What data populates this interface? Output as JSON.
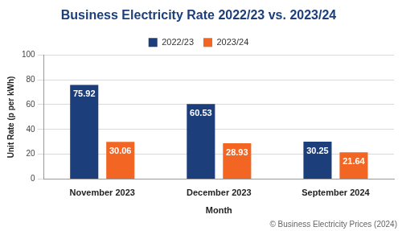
{
  "chart_data": {
    "type": "bar",
    "title": "Business Electricity Rate 2022/23 vs. 2023/24",
    "x_label": "Month",
    "y_label": "Unit Rate (p per kWh)",
    "categories": [
      "November 2023",
      "December 2023",
      "September 2024"
    ],
    "series": [
      {
        "name": "2022/23",
        "color": "#1c3f7c",
        "values": [
          75.92,
          60.53,
          30.25
        ]
      },
      {
        "name": "2023/24",
        "color": "#f26522",
        "values": [
          30.06,
          28.93,
          21.64
        ]
      }
    ],
    "ylim": [
      0,
      100
    ],
    "yticks": [
      0,
      20,
      40,
      60,
      80,
      100
    ],
    "grid": true,
    "legend": "top",
    "data_labels": true,
    "annotations": [
      "© Business Electricity Prices (2024)"
    ]
  }
}
